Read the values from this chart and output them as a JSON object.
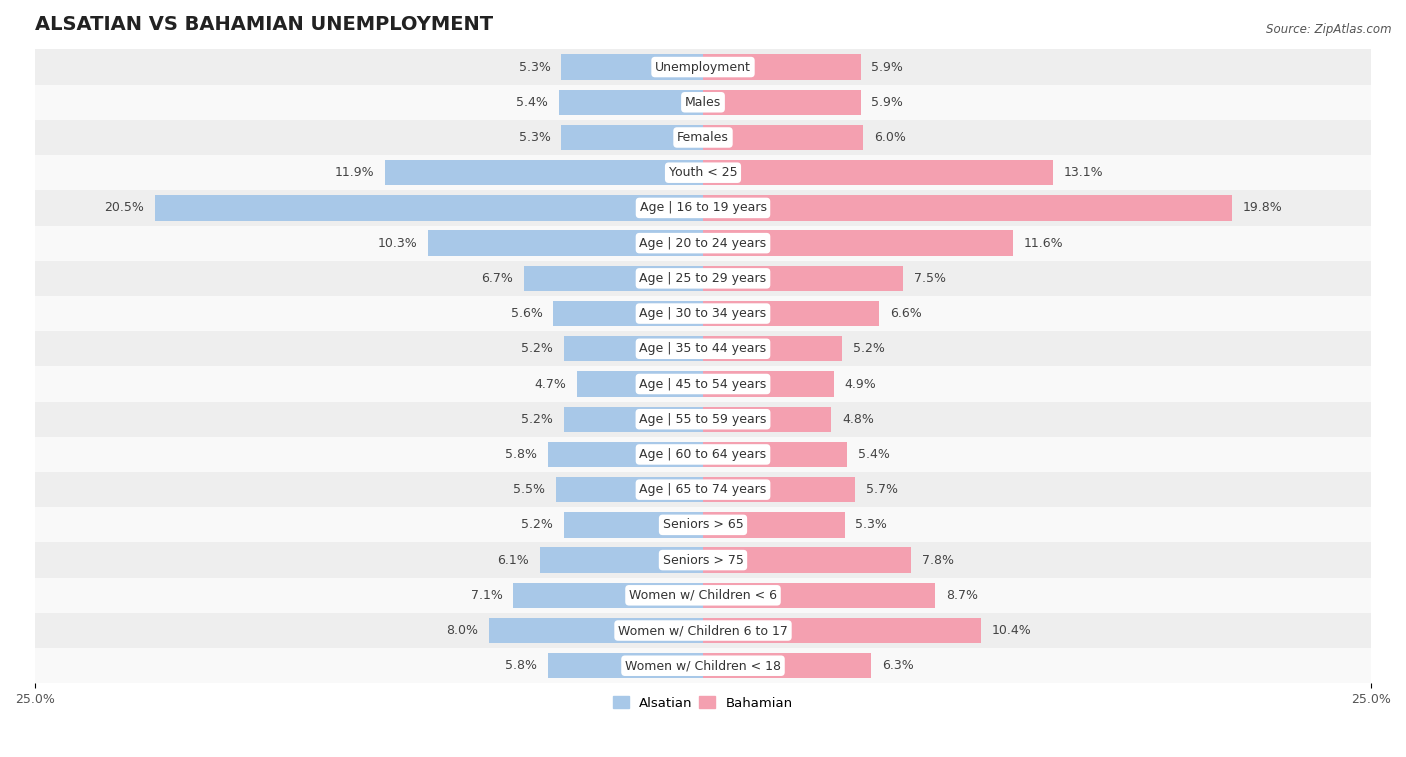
{
  "title": "ALSATIAN VS BAHAMIAN UNEMPLOYMENT",
  "source": "Source: ZipAtlas.com",
  "categories": [
    "Unemployment",
    "Males",
    "Females",
    "Youth < 25",
    "Age | 16 to 19 years",
    "Age | 20 to 24 years",
    "Age | 25 to 29 years",
    "Age | 30 to 34 years",
    "Age | 35 to 44 years",
    "Age | 45 to 54 years",
    "Age | 55 to 59 years",
    "Age | 60 to 64 years",
    "Age | 65 to 74 years",
    "Seniors > 65",
    "Seniors > 75",
    "Women w/ Children < 6",
    "Women w/ Children 6 to 17",
    "Women w/ Children < 18"
  ],
  "alsatian": [
    5.3,
    5.4,
    5.3,
    11.9,
    20.5,
    10.3,
    6.7,
    5.6,
    5.2,
    4.7,
    5.2,
    5.8,
    5.5,
    5.2,
    6.1,
    7.1,
    8.0,
    5.8
  ],
  "bahamian": [
    5.9,
    5.9,
    6.0,
    13.1,
    19.8,
    11.6,
    7.5,
    6.6,
    5.2,
    4.9,
    4.8,
    5.4,
    5.7,
    5.3,
    7.8,
    8.7,
    10.4,
    6.3
  ],
  "alsatian_color": "#a8c8e8",
  "bahamian_color": "#f4a0b0",
  "row_bg_light": "#eeeeee",
  "row_bg_white": "#f9f9f9",
  "xlim": 25.0,
  "bar_height": 0.72,
  "label_fontsize": 9,
  "category_fontsize": 9,
  "title_fontsize": 14,
  "value_fontsize": 9
}
